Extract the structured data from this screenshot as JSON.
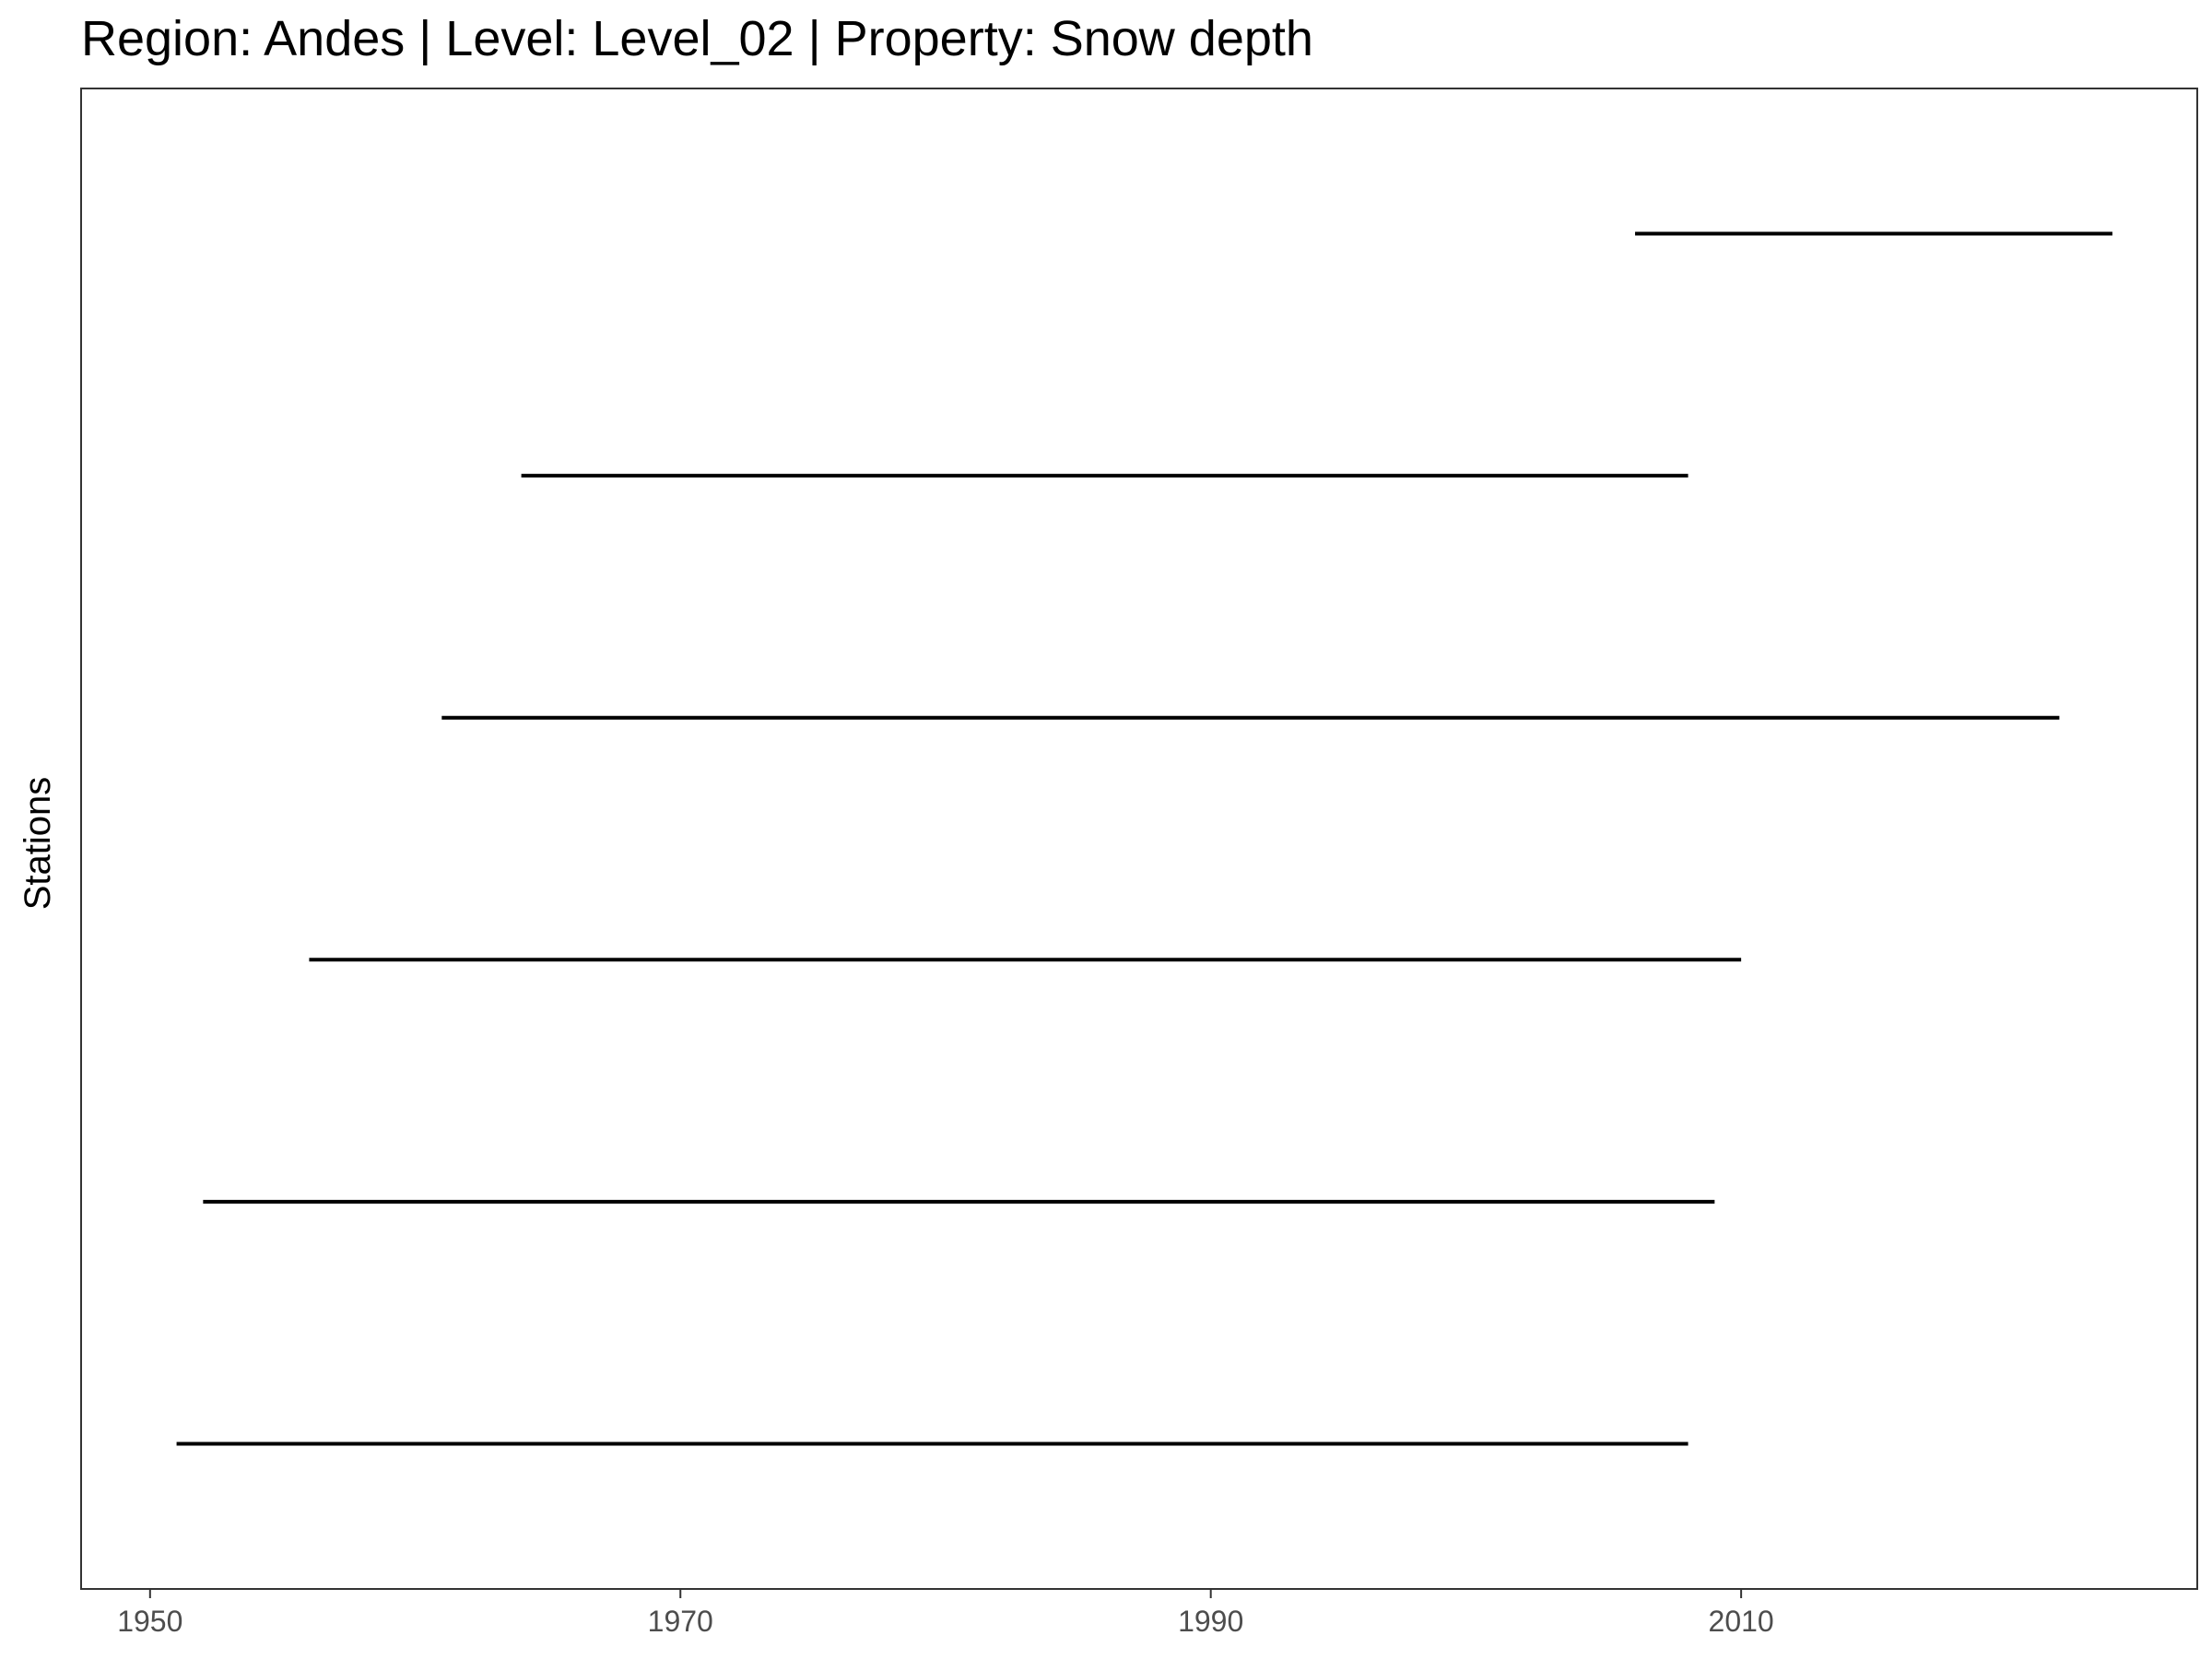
{
  "chart_data": {
    "type": "line",
    "title": "Region: Andes | Level: Level_02 | Property: Snow depth",
    "xlabel": "",
    "ylabel": "Stations",
    "xlim": [
      1947.4,
      2027.2
    ],
    "x_ticks": [
      "1950",
      "1970",
      "1990",
      "2010"
    ],
    "y_categories": 6,
    "grid": false,
    "legend": "none",
    "colors": {
      "line": "#000000",
      "tick_label": "#4d4d4d",
      "panel_border": "#333333",
      "background": "#ffffff"
    },
    "segments": [
      {
        "start": 1951.0,
        "end": 2008.0
      },
      {
        "start": 1952.0,
        "end": 2009.0
      },
      {
        "start": 1956.0,
        "end": 2010.0
      },
      {
        "start": 1961.0,
        "end": 2022.0
      },
      {
        "start": 1964.0,
        "end": 2008.0
      },
      {
        "start": 2006.0,
        "end": 2024.0
      }
    ]
  }
}
